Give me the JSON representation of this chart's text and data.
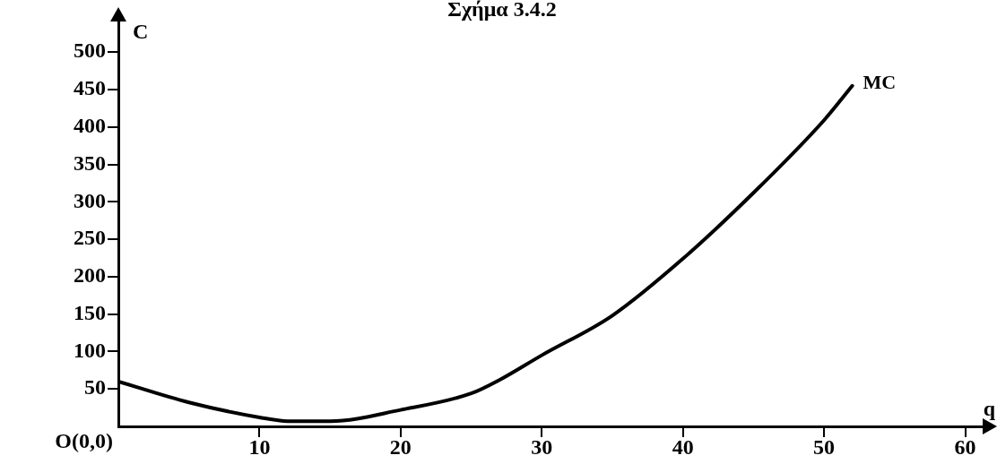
{
  "chart_data": {
    "type": "line",
    "title": "Σχήμα 3.4.2",
    "xlabel": "q",
    "ylabel": "C",
    "xlim": [
      0,
      62
    ],
    "ylim": [
      0,
      550
    ],
    "xticks": [
      10,
      20,
      30,
      40,
      50,
      60
    ],
    "yticks": [
      50,
      100,
      150,
      200,
      250,
      300,
      350,
      400,
      450,
      500
    ],
    "grid": false,
    "legend": false,
    "marker": "none",
    "line_style": "solid",
    "annotations": [
      "O(0,0)"
    ],
    "series": [
      {
        "name": "MC",
        "color": "#000000",
        "x": [
          0,
          5,
          10,
          12,
          15,
          20,
          25,
          27,
          30,
          35,
          40,
          45,
          50,
          52
        ],
        "values": [
          60,
          32,
          12,
          7,
          7,
          22,
          44,
          62,
          95,
          148,
          224,
          312,
          409,
          455
        ]
      }
    ]
  }
}
